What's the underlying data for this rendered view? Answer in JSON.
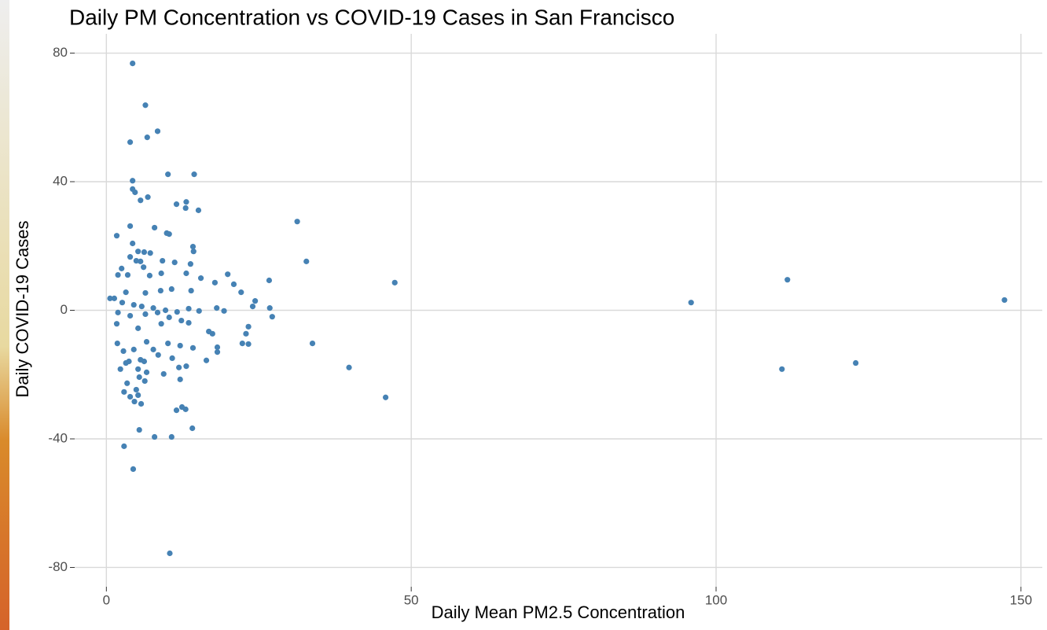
{
  "chart_data": {
    "type": "scatter",
    "title": "Daily PM Concentration vs COVID-19 Cases in San Francisco",
    "x_label": "Daily Mean PM2.5 Concentration",
    "y_label": "Daily COVID-19 Cases",
    "color": "#4682b4",
    "grid": true,
    "xlim": [
      -5.2,
      153.5
    ],
    "ylim": [
      -86,
      86
    ],
    "xticks": [
      0,
      50,
      100,
      150
    ],
    "yticks": [
      -80,
      -40,
      0,
      40,
      80
    ],
    "x": [
      4.3,
      6.4,
      8.4,
      3.9,
      6.7,
      10.1,
      14.4,
      4.3,
      4.3,
      4.7,
      6.8,
      5.6,
      13.1,
      11.5,
      13.0,
      15.1,
      31.3,
      7.9,
      3.9,
      9.9,
      10.3,
      1.7,
      4.3,
      14.2,
      14.3,
      5.2,
      6.2,
      7.2,
      32.8,
      3.9,
      4.9,
      5.6,
      9.2,
      11.2,
      13.8,
      6.1,
      2.5,
      13.1,
      9.0,
      7.1,
      3.5,
      1.9,
      19.9,
      111.7,
      47.3,
      26.7,
      15.5,
      20.9,
      17.8,
      22.1,
      13.9,
      10.7,
      8.9,
      6.4,
      3.2,
      1.3,
      147.3,
      95.9,
      24.4,
      24.0,
      26.8,
      18.1,
      15.2,
      19.3,
      27.2,
      0.6,
      2.6,
      4.5,
      5.8,
      7.7,
      9.7,
      11.6,
      13.5,
      1.9,
      3.9,
      6.4,
      8.4,
      10.3,
      12.3,
      1.7,
      5.2,
      9.0,
      13.5,
      23.3,
      22.9,
      33.8,
      22.3,
      23.3,
      1.8,
      6.6,
      10.1,
      12.1,
      18.2,
      18.2,
      16.8,
      17.4,
      2.8,
      4.5,
      7.7,
      14.2,
      16.4,
      3.7,
      5.6,
      10.8,
      8.5,
      3.2,
      6.2,
      13.1,
      11.9,
      39.8,
      110.8,
      122.9,
      2.3,
      5.2,
      9.4,
      6.6,
      12.1,
      5.4,
      3.4,
      6.3,
      4.9,
      2.9,
      5.2,
      3.9,
      45.8,
      4.6,
      5.7,
      12.4,
      11.5,
      13.0,
      14.1,
      5.4,
      7.9,
      10.7,
      2.9,
      4.4,
      10.4
    ],
    "values": [
      76.8,
      63.8,
      55.7,
      52.3,
      53.8,
      42.3,
      42.3,
      40.3,
      37.7,
      36.7,
      35.2,
      34.2,
      33.7,
      33.0,
      31.8,
      31.1,
      27.6,
      25.7,
      26.2,
      24.0,
      23.7,
      23.2,
      20.8,
      19.8,
      18.3,
      18.3,
      18.1,
      17.8,
      15.2,
      16.6,
      15.4,
      15.2,
      15.4,
      14.9,
      14.4,
      13.4,
      13.0,
      11.5,
      11.5,
      10.8,
      11.0,
      11.0,
      11.2,
      9.5,
      8.6,
      9.3,
      10.0,
      8.1,
      8.6,
      5.6,
      6.1,
      6.6,
      6.1,
      5.4,
      5.6,
      3.7,
      3.2,
      2.4,
      2.9,
      1.2,
      0.7,
      0.7,
      -0.2,
      -0.2,
      -2.0,
      3.7,
      2.4,
      1.7,
      1.2,
      0.7,
      0,
      -0.5,
      0.5,
      -0.7,
      -1.7,
      -1.2,
      -0.7,
      -2.2,
      -3.2,
      -4.2,
      -5.6,
      -4.2,
      -3.9,
      -5.1,
      -7.3,
      -10.3,
      -10.3,
      -10.5,
      -10.3,
      -9.8,
      -10.3,
      -11.0,
      -11.5,
      -13.0,
      -6.6,
      -7.3,
      -12.7,
      -12.2,
      -12.2,
      -11.7,
      -15.6,
      -15.9,
      -15.4,
      -14.9,
      -13.9,
      -16.4,
      -15.9,
      -17.4,
      -17.8,
      -17.8,
      -18.3,
      -16.4,
      -18.3,
      -18.3,
      -19.8,
      -19.3,
      -21.5,
      -20.8,
      -22.7,
      -22.0,
      -24.7,
      -25.4,
      -26.4,
      -26.9,
      -27.1,
      -28.4,
      -29.1,
      -30.1,
      -31.1,
      -30.8,
      -36.7,
      -37.2,
      -39.4,
      -39.4,
      -42.3,
      -49.4,
      -75.6
    ]
  }
}
